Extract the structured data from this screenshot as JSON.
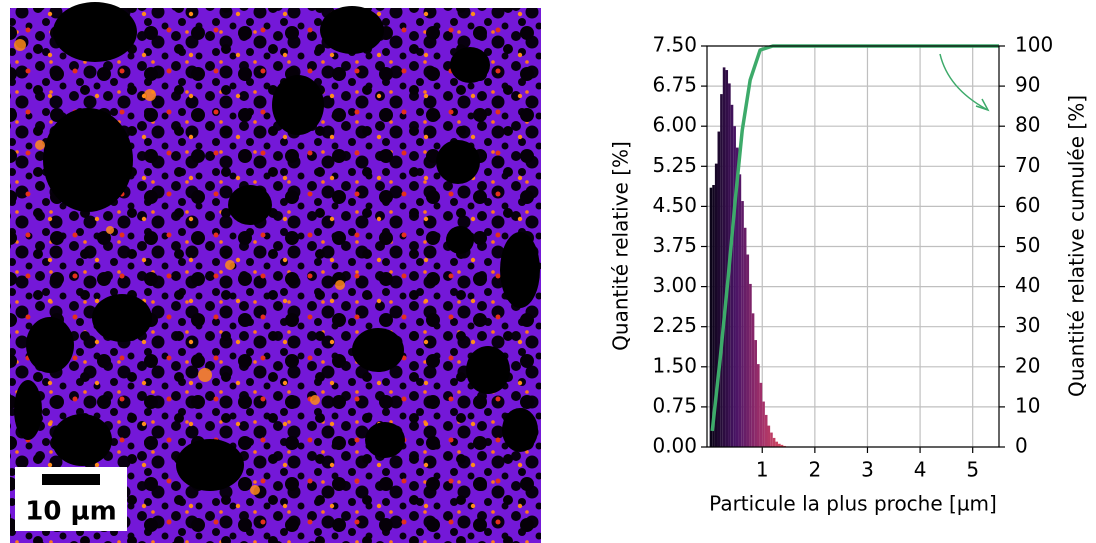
{
  "image": {
    "scale_bar_label": "10 µm"
  },
  "chart_data": {
    "type": "histogram",
    "xlabel": "Particule la plus proche [µm]",
    "ylabel": "Quantité relative [%]",
    "y2label": "Quantité relative cumulée [%]",
    "xlim": [
      -0.05,
      5.5
    ],
    "xticks": [
      1,
      2,
      3,
      4,
      5
    ],
    "ylim": [
      0,
      7.5
    ],
    "yticks": [
      {
        "value": 0,
        "label": "0.00"
      },
      {
        "value": 0.75,
        "label": "0.75"
      },
      {
        "value": 1.5,
        "label": "1.50"
      },
      {
        "value": 2.25,
        "label": "2.25"
      },
      {
        "value": 3,
        "label": "3.00"
      },
      {
        "value": 3.75,
        "label": "3.75"
      },
      {
        "value": 4.5,
        "label": "4.50"
      },
      {
        "value": 5.25,
        "label": "5.25"
      },
      {
        "value": 6,
        "label": "6.00"
      },
      {
        "value": 6.75,
        "label": "6.75"
      },
      {
        "value": 7.5,
        "label": "7.50"
      }
    ],
    "y2lim": [
      0,
      100
    ],
    "y2ticks": [
      0,
      10,
      20,
      30,
      40,
      50,
      60,
      70,
      80,
      90,
      100
    ],
    "grid": true,
    "series": [
      {
        "type": "histogram",
        "colormap": [
          "#0b0418",
          "#4a1466",
          "#a2306a",
          "#e3515d"
        ],
        "bins": [
          0,
          0.05,
          0.1,
          0.15,
          0.2,
          0.25,
          0.3,
          0.35,
          0.4,
          0.45,
          0.5,
          0.55,
          0.6,
          0.65,
          0.7,
          0.75,
          0.8,
          0.85,
          0.9,
          0.95,
          1,
          1.05,
          1.1,
          1.15,
          1.2,
          1.25,
          1.3,
          1.35,
          1.4,
          1.45,
          1.5
        ],
        "values": [
          4.85,
          4.9,
          5.3,
          5.9,
          6.6,
          7.1,
          7.05,
          6.8,
          6.4,
          6.0,
          5.6,
          5.1,
          4.6,
          4.1,
          3.6,
          3.05,
          2.5,
          2.0,
          1.55,
          1.2,
          0.85,
          0.6,
          0.4,
          0.27,
          0.17,
          0.1,
          0.06,
          0.04,
          0.02,
          0.01
        ]
      },
      {
        "type": "line",
        "axis": "y2",
        "color": "#3daa6a",
        "x": [
          0.05,
          0.2,
          0.35,
          0.49,
          0.62,
          0.77,
          0.96,
          1.2,
          1.5,
          5.5
        ],
        "values": [
          4,
          22,
          42,
          62,
          79,
          91.5,
          99,
          100,
          100,
          100
        ]
      }
    ]
  }
}
